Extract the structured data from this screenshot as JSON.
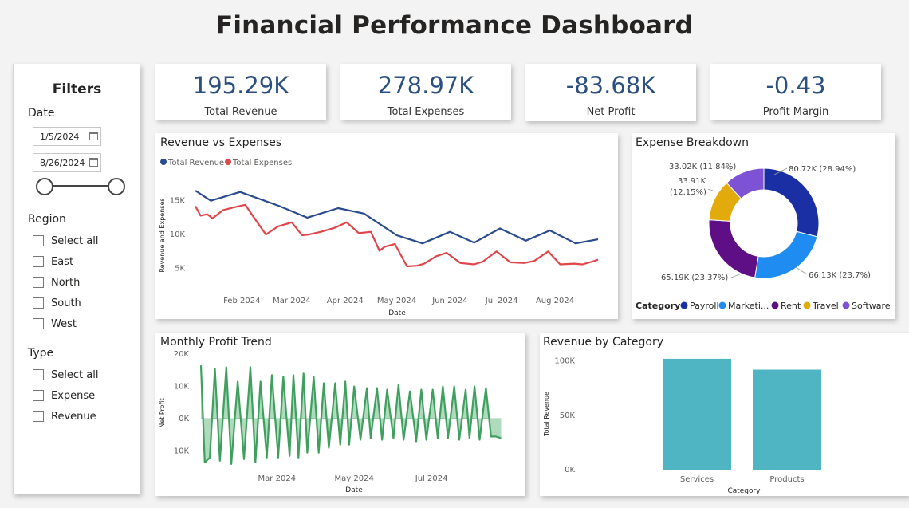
{
  "title": "Financial Performance Dashboard",
  "kpis": [
    {
      "value": "195.29K",
      "label": "Total Revenue"
    },
    {
      "value": "278.97K",
      "label": "Total Expenses"
    },
    {
      "value": "-83.68K",
      "label": "Net Profit"
    },
    {
      "value": "-0.43",
      "label": "Profit Margin"
    }
  ],
  "filters": {
    "title": "Filters",
    "date": {
      "label": "Date",
      "start": "1/5/2024",
      "end": "8/26/2024"
    },
    "region": {
      "label": "Region",
      "options": [
        "Select all",
        "East",
        "North",
        "South",
        "West"
      ]
    },
    "type": {
      "label": "Type",
      "options": [
        "Select all",
        "Expense",
        "Revenue"
      ]
    }
  },
  "colors": {
    "revenue": "#2a4b8d",
    "expenses": "#e0454a",
    "profit": "#4caf6a",
    "bar": "#4fb5c3"
  },
  "chart_data": [
    {
      "type": "line",
      "title": "Revenue vs Expenses",
      "xlabel": "Date",
      "ylabel": "Revenue and Expenses",
      "x_tick_labels": [
        "Feb 2024",
        "Mar 2024",
        "Apr 2024",
        "May 2024",
        "Jun 2024",
        "Jul 2024",
        "Aug 2024"
      ],
      "y_tick_labels": [
        "15K",
        "10K",
        "5K"
      ],
      "yticks": [
        15000,
        10000,
        5000
      ],
      "ylim": [
        2000,
        18500
      ],
      "xlim": [
        "2024-01-05",
        "2024-08-26"
      ],
      "legend": "top-left",
      "series": [
        {
          "name": "Total Revenue",
          "x": [
            "2024-01-05",
            "2024-01-14",
            "2024-01-31",
            "2024-02-23",
            "2024-03-10",
            "2024-03-28",
            "2024-04-12",
            "2024-05-01",
            "2024-05-16",
            "2024-06-01",
            "2024-06-15",
            "2024-06-30",
            "2024-07-15",
            "2024-07-29",
            "2024-08-13",
            "2024-08-26"
          ],
          "values": [
            16500,
            15000,
            16300,
            14200,
            12500,
            13900,
            13100,
            9900,
            8700,
            10400,
            8800,
            10900,
            9100,
            10600,
            8700,
            9300
          ]
        },
        {
          "name": "Total Expenses",
          "x": [
            "2024-01-05",
            "2024-01-08",
            "2024-01-12",
            "2024-01-15",
            "2024-01-21",
            "2024-01-27",
            "2024-02-03",
            "2024-02-07",
            "2024-02-15",
            "2024-02-22",
            "2024-03-01",
            "2024-03-07",
            "2024-03-11",
            "2024-03-18",
            "2024-03-26",
            "2024-04-02",
            "2024-04-09",
            "2024-04-16",
            "2024-04-21",
            "2024-04-24",
            "2024-04-30",
            "2024-05-07",
            "2024-05-13",
            "2024-05-17",
            "2024-05-24",
            "2024-05-30",
            "2024-06-07",
            "2024-06-15",
            "2024-06-20",
            "2024-06-28",
            "2024-07-06",
            "2024-07-14",
            "2024-07-20",
            "2024-07-28",
            "2024-08-04",
            "2024-08-12",
            "2024-08-17",
            "2024-08-24",
            "2024-08-26"
          ],
          "values": [
            14200,
            12800,
            13000,
            12400,
            13600,
            14000,
            14400,
            12900,
            10000,
            11200,
            11800,
            9900,
            10000,
            10400,
            11000,
            11800,
            10200,
            10400,
            7600,
            8200,
            8600,
            5300,
            5400,
            5700,
            6800,
            7300,
            5800,
            5600,
            6000,
            7500,
            5900,
            5800,
            6100,
            7500,
            5600,
            5700,
            5600,
            6100,
            6300
          ]
        }
      ]
    },
    {
      "type": "pie",
      "title": "Expense Breakdown",
      "legend_title": "Category",
      "legend": "bottom",
      "legend_labels": [
        "Payroll",
        "Marketi...",
        "Rent",
        "Travel",
        "Software"
      ],
      "slices": [
        {
          "name": "Payroll",
          "value": 80720,
          "label": "80.72K (28.94%)",
          "color": "#1a2fa3"
        },
        {
          "name": "Marketing",
          "value": 66130,
          "label": "66.13K (23.7%)",
          "color": "#1e8cf0"
        },
        {
          "name": "Rent",
          "value": 65190,
          "label": "65.19K (23.37%)",
          "color": "#5e0f86"
        },
        {
          "name": "Travel",
          "value": 33910,
          "label": "33.91K (12.15%)",
          "color": "#e2aa0a"
        },
        {
          "name": "Software",
          "value": 33020,
          "label": "33.02K (11.84%)",
          "color": "#7e52d4"
        }
      ]
    },
    {
      "type": "area",
      "title": "Monthly Profit Trend",
      "xlabel": "Date",
      "ylabel": "Net Profit",
      "x_tick_labels": [
        "Mar 2024",
        "May 2024",
        "Jul 2024"
      ],
      "y_tick_labels": [
        "20K",
        "10K",
        "0K",
        "-10K"
      ],
      "yticks": [
        20000,
        10000,
        0,
        -10000
      ],
      "ylim": [
        -16000,
        21000
      ],
      "xlim": [
        "2024-01-01",
        "2024-08-31"
      ],
      "series": [
        {
          "name": "Net Profit",
          "x": [
            "2024-01-01",
            "2024-01-04",
            "2024-01-08",
            "2024-01-12",
            "2024-01-16",
            "2024-01-21",
            "2024-01-25",
            "2024-01-30",
            "2024-02-04",
            "2024-02-09",
            "2024-02-13",
            "2024-02-17",
            "2024-02-22",
            "2024-02-26",
            "2024-03-02",
            "2024-03-06",
            "2024-03-11",
            "2024-03-14",
            "2024-03-18",
            "2024-03-22",
            "2024-03-25",
            "2024-03-30",
            "2024-04-03",
            "2024-04-07",
            "2024-04-11",
            "2024-04-16",
            "2024-04-20",
            "2024-04-24",
            "2024-04-27",
            "2024-05-01",
            "2024-05-06",
            "2024-05-11",
            "2024-05-14",
            "2024-05-19",
            "2024-05-23",
            "2024-05-27",
            "2024-06-01",
            "2024-06-05",
            "2024-06-09",
            "2024-06-14",
            "2024-06-19",
            "2024-06-23",
            "2024-06-27",
            "2024-07-02",
            "2024-07-06",
            "2024-07-10",
            "2024-07-14",
            "2024-07-19",
            "2024-07-23",
            "2024-07-28",
            "2024-07-31",
            "2024-08-04",
            "2024-08-08",
            "2024-08-13",
            "2024-08-17",
            "2024-08-21",
            "2024-08-25"
          ],
          "values": [
            16500,
            -13500,
            -12000,
            15500,
            -13000,
            16000,
            -14000,
            11500,
            -12500,
            16000,
            -13500,
            11500,
            -12000,
            13500,
            -12000,
            13000,
            -11500,
            13500,
            -12000,
            14000,
            -10500,
            13000,
            -10500,
            11000,
            -9000,
            11000,
            -8000,
            11500,
            -8000,
            10000,
            -6500,
            9500,
            -6000,
            9500,
            -6500,
            9000,
            -6000,
            10500,
            -6500,
            8500,
            -7000,
            9000,
            -6500,
            9000,
            -6000,
            10000,
            -6000,
            10000,
            -6500,
            9000,
            -6000,
            10000,
            -6500,
            9500,
            -5500,
            -5500,
            -6000
          ]
        }
      ]
    },
    {
      "type": "bar",
      "title": "Revenue by Category",
      "xlabel": "Category",
      "ylabel": "Total Revenue",
      "categories": [
        "Services",
        "Products"
      ],
      "values": [
        102000,
        92000
      ],
      "y_tick_labels": [
        "100K",
        "50K",
        "0K"
      ],
      "yticks": [
        100000,
        50000,
        0
      ],
      "ylim": [
        0,
        110000
      ]
    }
  ]
}
